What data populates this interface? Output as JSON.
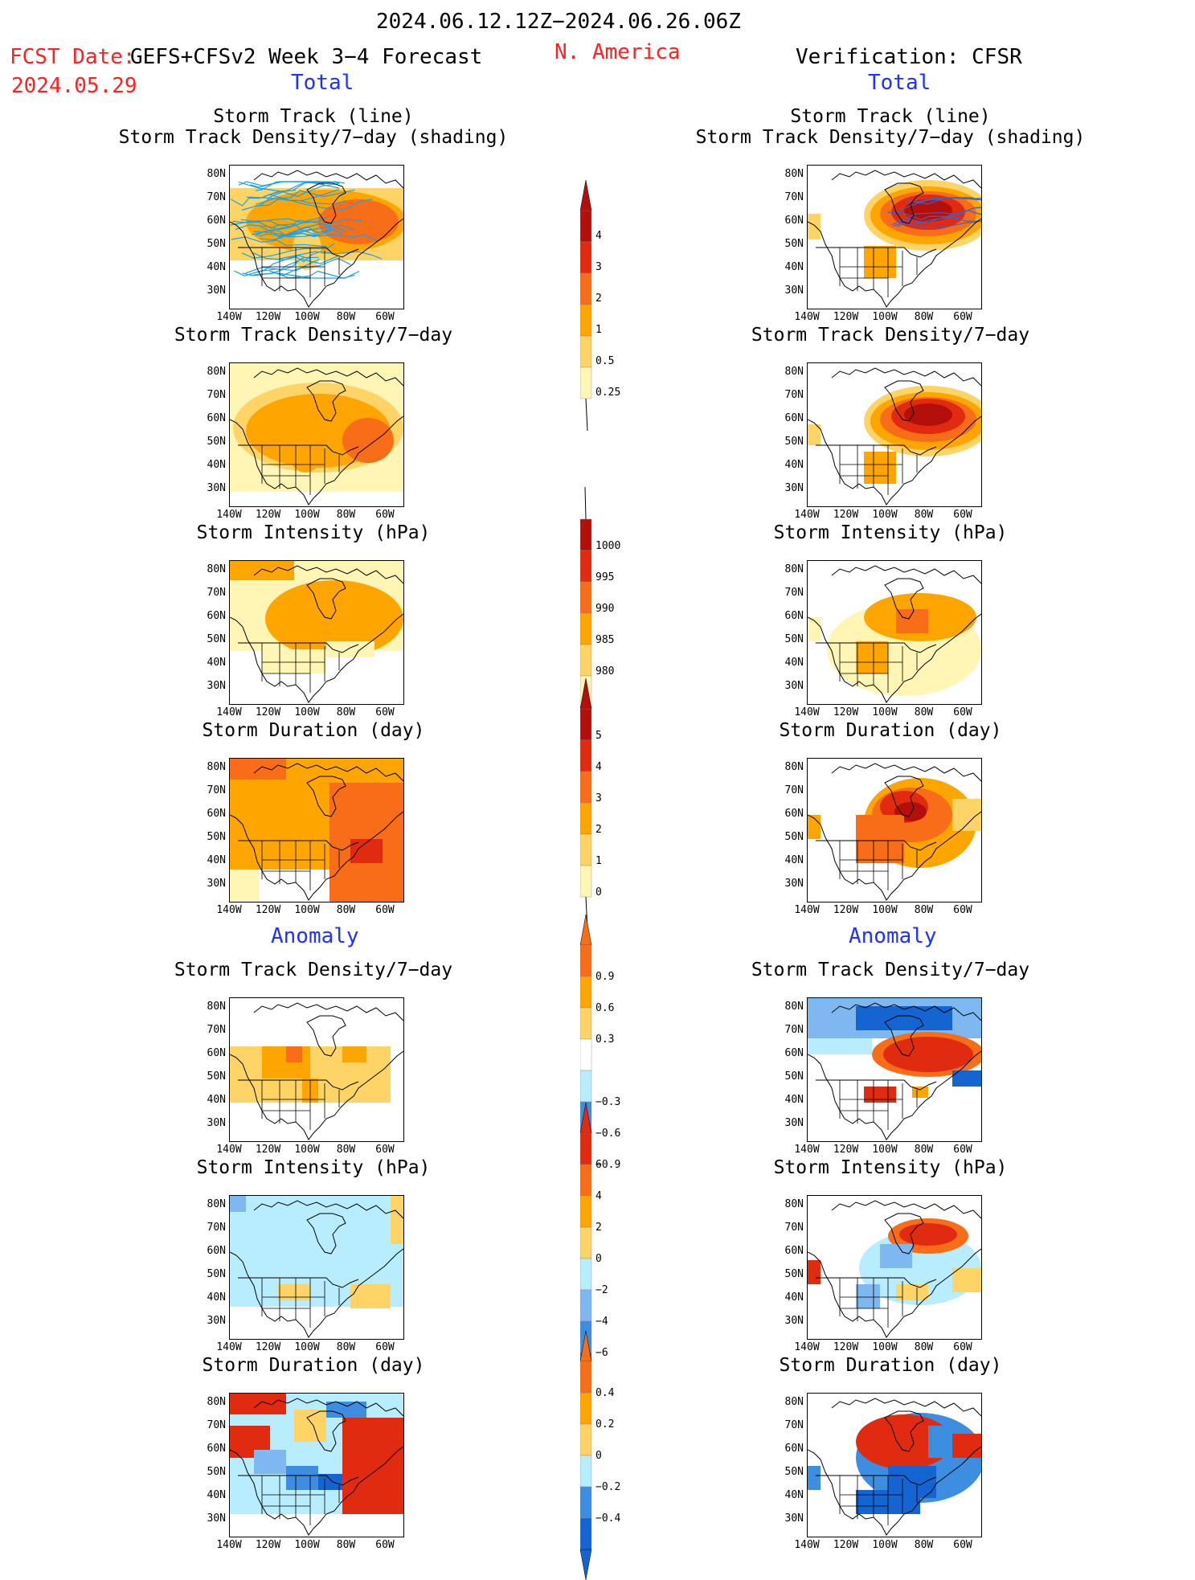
{
  "header": {
    "period": "2024.06.12.12Z−2024.06.26.06Z",
    "fcst_date_label": "FCST Date:",
    "fcst_date": "2024.05.29",
    "model_label": "GEFS+CFSv2 Week 3−4 Forecast",
    "region": "N. America",
    "verification_label": "Verification: CFSR",
    "left_section_total": "Total",
    "right_section_total": "Total",
    "left_section_anomaly": "Anomaly",
    "right_section_anomaly": "Anomaly"
  },
  "panel_titles": {
    "track_line": "Storm Track (line)",
    "track_shading": "Storm Track Density/7−day (shading)",
    "density": "Storm Track Density/7−day",
    "intensity": "Storm Intensity (hPa)",
    "duration": "Storm Duration (day)"
  },
  "axes": {
    "lat_labels": [
      "80N",
      "70N",
      "60N",
      "50N",
      "40N",
      "30N"
    ],
    "lon_labels": [
      "140W",
      "120W",
      "100W",
      "80W",
      "60W"
    ]
  },
  "colors": {
    "pale_yellow": "#fff5b4",
    "light_orange": "#ffd466",
    "orange": "#ffa500",
    "dark_orange": "#f76d18",
    "red": "#e02b10",
    "dark_red": "#b40f0a",
    "light_blue": "#b8ecff",
    "mid_blue": "#7fb8f0",
    "blue": "#3d8ee0",
    "dark_blue": "#1464d2",
    "track_line": "#1ea0e6"
  },
  "colorbars": {
    "density_total": {
      "labels": [
        "0.25",
        "0.5",
        "1",
        "2",
        "3",
        "4"
      ]
    },
    "intensity_total": {
      "labels": [
        "1000",
        "995",
        "990",
        "985",
        "980"
      ]
    },
    "duration_total": {
      "labels": [
        "0",
        "1",
        "2",
        "3",
        "4",
        "5"
      ]
    },
    "density_anom": {
      "labels": [
        "0.9",
        "0.6",
        "0.3",
        "−0.3",
        "−0.6",
        "−0.9"
      ]
    },
    "intensity_anom": {
      "labels": [
        "6",
        "4",
        "2",
        "0",
        "−2",
        "−4",
        "−6"
      ]
    },
    "duration_anom": {
      "labels": [
        "0.4",
        "0.2",
        "0",
        "−0.2",
        "−0.4"
      ]
    }
  }
}
